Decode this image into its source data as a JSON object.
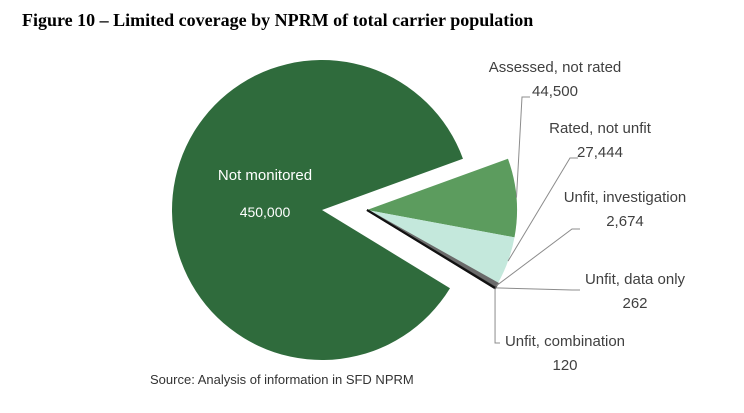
{
  "chart_data": {
    "type": "pie",
    "title": "Figure 10 – Limited coverage by NPRM of total carrier population",
    "source": "Source: Analysis of information in SFD NPRM",
    "categories": [
      "Not monitored",
      "Assessed, not rated",
      "Rated, not unfit",
      "Unfit, investigation",
      "Unfit, data only",
      "Unfit, combination"
    ],
    "values": [
      450000,
      44500,
      27444,
      2674,
      262,
      120
    ],
    "value_labels": [
      "450,000",
      "44,500",
      "27,444",
      "2,674",
      "262",
      "120"
    ],
    "colors": [
      "#2f6b3c",
      "#5c9c5e",
      "#c4e8dc",
      "#6b6b6b",
      "#333333",
      "#111111"
    ]
  }
}
